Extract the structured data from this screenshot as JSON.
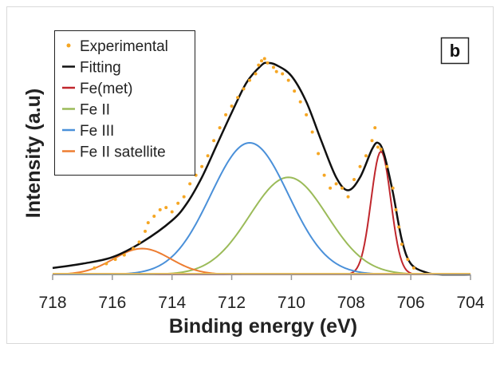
{
  "chart_data": {
    "type": "line",
    "title": "",
    "panel_label": "b",
    "xlabel": "Binding energy (eV)",
    "ylabel": "Intensity (a.u)",
    "xlim": [
      718,
      704
    ],
    "x_reversed": true,
    "xticks": [
      718,
      716,
      714,
      712,
      710,
      708,
      706,
      704
    ],
    "ylim": [
      0,
      1.05
    ],
    "yticks_shown": false,
    "grid": false,
    "legend_position": "top-left",
    "series": [
      {
        "name": "Experimental",
        "style": "scatter",
        "color": "#f5a623",
        "points": [
          [
            716.6,
            0.03
          ],
          [
            716.2,
            0.05
          ],
          [
            715.9,
            0.07
          ],
          [
            715.6,
            0.09
          ],
          [
            715.3,
            0.12
          ],
          [
            715.1,
            0.15
          ],
          [
            714.9,
            0.2
          ],
          [
            714.8,
            0.24
          ],
          [
            714.6,
            0.27
          ],
          [
            714.4,
            0.3
          ],
          [
            714.2,
            0.31
          ],
          [
            714.0,
            0.29
          ],
          [
            713.8,
            0.33
          ],
          [
            713.6,
            0.36
          ],
          [
            713.4,
            0.42
          ],
          [
            713.2,
            0.46
          ],
          [
            713.0,
            0.5
          ],
          [
            712.8,
            0.55
          ],
          [
            712.6,
            0.62
          ],
          [
            712.4,
            0.68
          ],
          [
            712.2,
            0.74
          ],
          [
            712.0,
            0.78
          ],
          [
            711.8,
            0.82
          ],
          [
            711.6,
            0.86
          ],
          [
            711.4,
            0.9
          ],
          [
            711.2,
            0.93
          ],
          [
            711.1,
            0.97
          ],
          [
            711.0,
            0.99
          ],
          [
            710.9,
            1.0
          ],
          [
            710.8,
            0.98
          ],
          [
            710.6,
            0.96
          ],
          [
            710.5,
            0.94
          ],
          [
            710.3,
            0.93
          ],
          [
            710.1,
            0.9
          ],
          [
            709.9,
            0.85
          ],
          [
            709.7,
            0.8
          ],
          [
            709.5,
            0.74
          ],
          [
            709.3,
            0.66
          ],
          [
            709.1,
            0.56
          ],
          [
            708.9,
            0.46
          ],
          [
            708.7,
            0.4
          ],
          [
            708.5,
            0.42
          ],
          [
            708.3,
            0.4
          ],
          [
            708.1,
            0.36
          ],
          [
            707.9,
            0.44
          ],
          [
            707.7,
            0.5
          ],
          [
            707.5,
            0.55
          ],
          [
            707.3,
            0.62
          ],
          [
            707.2,
            0.68
          ],
          [
            707.1,
            0.59
          ],
          [
            707.0,
            0.58
          ],
          [
            706.8,
            0.5
          ],
          [
            706.6,
            0.4
          ],
          [
            706.5,
            0.3
          ],
          [
            706.4,
            0.22
          ],
          [
            706.3,
            0.14
          ],
          [
            706.1,
            0.07
          ],
          [
            705.9,
            0.03
          ]
        ]
      },
      {
        "name": "Fitting",
        "style": "line",
        "color": "#111111",
        "points": [
          [
            718.0,
            0.03
          ],
          [
            717.0,
            0.05
          ],
          [
            716.0,
            0.08
          ],
          [
            715.0,
            0.15
          ],
          [
            714.0,
            0.25
          ],
          [
            713.5,
            0.33
          ],
          [
            713.0,
            0.45
          ],
          [
            712.5,
            0.6
          ],
          [
            712.0,
            0.75
          ],
          [
            711.5,
            0.89
          ],
          [
            711.0,
            0.97
          ],
          [
            710.8,
            0.98
          ],
          [
            710.5,
            0.97
          ],
          [
            710.0,
            0.92
          ],
          [
            709.5,
            0.8
          ],
          [
            709.0,
            0.62
          ],
          [
            708.5,
            0.45
          ],
          [
            708.1,
            0.39
          ],
          [
            707.7,
            0.45
          ],
          [
            707.3,
            0.58
          ],
          [
            707.1,
            0.61
          ],
          [
            706.9,
            0.56
          ],
          [
            706.6,
            0.38
          ],
          [
            706.3,
            0.16
          ],
          [
            706.0,
            0.05
          ],
          [
            705.5,
            0.01
          ],
          [
            705.0,
            0.0
          ],
          [
            704.0,
            0.0
          ]
        ]
      },
      {
        "name": "Fe(met)",
        "style": "gaussian",
        "color": "#c0272d",
        "center": 707.0,
        "amplitude": 0.57,
        "sigma": 0.33
      },
      {
        "name": "Fe II",
        "style": "gaussian",
        "color": "#9bbb59",
        "center": 710.1,
        "amplitude": 0.45,
        "sigma": 1.3
      },
      {
        "name": "Fe III",
        "style": "gaussian",
        "color": "#4a90d9",
        "center": 711.4,
        "amplitude": 0.61,
        "sigma": 1.3
      },
      {
        "name": "Fe II satellite",
        "style": "gaussian",
        "color": "#ed7d31",
        "center": 715.0,
        "amplitude": 0.12,
        "sigma": 0.95
      }
    ]
  }
}
